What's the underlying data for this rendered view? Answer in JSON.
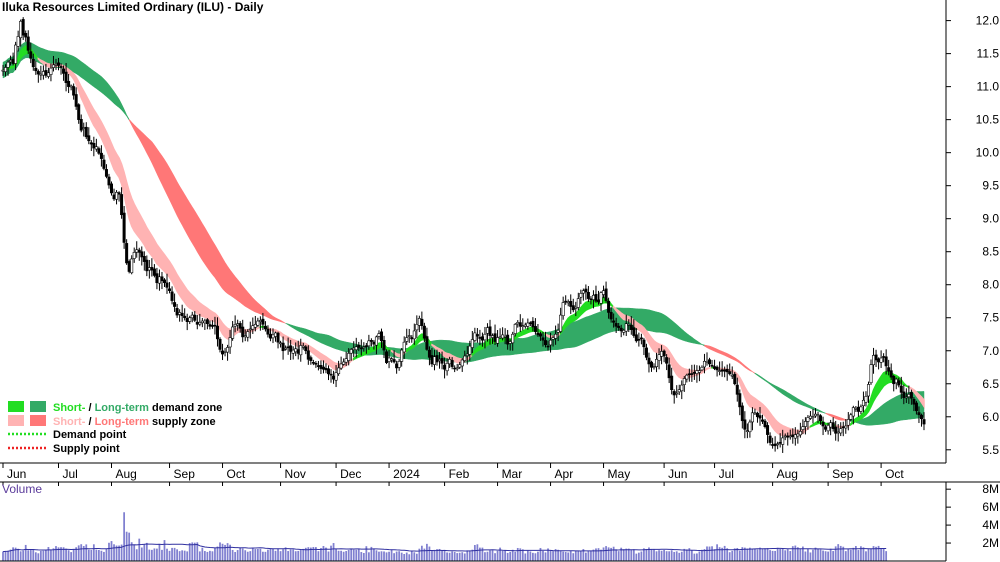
{
  "chart_data": {
    "type": "candlestick",
    "title": "Iluka Resources Limited Ordinary (ILU) - Daily",
    "colors": {
      "short_demand": "#22dd22",
      "long_demand": "#33aa66",
      "short_supply": "#ffb3b3",
      "long_supply": "#ff7777",
      "overlap": "#ff6622",
      "candle": "#000000",
      "volume": "#8080d0",
      "volume_avg": "#3030a0"
    },
    "price_axis": {
      "min": 5.3,
      "max": 12.1,
      "ticks": [
        12.0,
        11.5,
        11.0,
        10.5,
        10.0,
        9.5,
        9.0,
        8.5,
        8.0,
        7.5,
        7.0,
        6.5,
        6.0,
        5.5
      ]
    },
    "volume_axis": {
      "title": "Volume",
      "ticks": [
        "8M",
        "6M",
        "4M",
        "2M"
      ],
      "tick_values": [
        8,
        6,
        4,
        2
      ],
      "unit": "M"
    },
    "months": [
      "Jun",
      "Jul",
      "Aug",
      "Sep",
      "Oct",
      "Nov",
      "Dec",
      "2024",
      "Feb",
      "Mar",
      "Apr",
      "May",
      "Jun",
      "Jul",
      "Aug",
      "Sep",
      "Oct"
    ],
    "month_start_index": [
      0,
      22,
      43,
      66,
      87,
      110,
      132,
      153,
      175,
      196,
      217,
      238,
      262,
      282,
      305,
      327,
      348
    ],
    "closes": [
      11.25,
      11.29,
      11.37,
      11.4,
      11.35,
      11.63,
      11.76,
      11.99,
      11.78,
      11.75,
      11.55,
      11.43,
      11.3,
      11.24,
      11.19,
      11.19,
      11.23,
      11.17,
      11.21,
      11.28,
      11.33,
      11.34,
      11.32,
      11.29,
      11.2,
      11.06,
      11.0,
      11.01,
      10.87,
      10.7,
      10.5,
      10.34,
      10.38,
      10.24,
      10.18,
      10.13,
      10.07,
      10.09,
      9.99,
      9.91,
      9.76,
      9.64,
      9.51,
      9.39,
      9.3,
      9.4,
      9.37,
      9.06,
      8.64,
      8.33,
      8.2,
      8.39,
      8.49,
      8.53,
      8.49,
      8.42,
      8.35,
      8.21,
      8.26,
      8.22,
      8.14,
      8.03,
      8.12,
      8.06,
      8.03,
      7.96,
      7.91,
      7.76,
      7.67,
      7.54,
      7.58,
      7.53,
      7.5,
      7.44,
      7.5,
      7.54,
      7.46,
      7.4,
      7.43,
      7.45,
      7.45,
      7.41,
      7.37,
      7.38,
      7.38,
      7.18,
      7.02,
      6.95,
      6.99,
      7.05,
      7.2,
      7.36,
      7.4,
      7.41,
      7.34,
      7.21,
      7.23,
      7.29,
      7.33,
      7.38,
      7.4,
      7.45,
      7.46,
      7.4,
      7.33,
      7.25,
      7.19,
      7.24,
      7.27,
      7.13,
      7.12,
      7.0,
      7.04,
      7.06,
      6.99,
      7.01,
      7.03,
      6.96,
      7.08,
      7.07,
      7.0,
      6.87,
      6.85,
      6.82,
      6.8,
      6.76,
      6.73,
      6.72,
      6.71,
      6.65,
      6.64,
      6.57,
      6.67,
      6.74,
      6.8,
      6.83,
      6.88,
      6.96,
      7.02,
      7.04,
      7.06,
      7.05,
      7.03,
      7.06,
      7.07,
      7.15,
      7.14,
      7.1,
      7.21,
      7.26,
      7.15,
      7.01,
      6.82,
      6.89,
      6.88,
      6.83,
      6.74,
      6.84,
      7.01,
      7.13,
      7.2,
      7.23,
      7.18,
      7.3,
      7.4,
      7.49,
      7.38,
      7.19,
      7.02,
      6.9,
      6.8,
      6.91,
      6.83,
      6.87,
      6.81,
      6.72,
      6.81,
      6.87,
      6.76,
      6.73,
      6.74,
      6.79,
      6.86,
      6.92,
      6.95,
      7.07,
      7.17,
      7.27,
      7.22,
      7.19,
      7.16,
      7.25,
      7.35,
      7.23,
      7.23,
      7.14,
      7.2,
      7.21,
      7.24,
      7.22,
      7.1,
      7.14,
      7.25,
      7.4,
      7.43,
      7.37,
      7.38,
      7.39,
      7.42,
      7.42,
      7.36,
      7.29,
      7.24,
      7.22,
      7.16,
      7.09,
      7.07,
      7.16,
      7.2,
      7.25,
      7.31,
      7.54,
      7.73,
      7.75,
      7.74,
      7.67,
      7.62,
      7.66,
      7.79,
      7.87,
      7.91,
      7.89,
      7.79,
      7.78,
      7.84,
      7.75,
      7.74,
      7.88,
      7.91,
      7.76,
      7.58,
      7.48,
      7.43,
      7.37,
      7.35,
      7.3,
      7.31,
      7.41,
      7.4,
      7.32,
      7.23,
      7.15,
      7.17,
      7.18,
      7.06,
      6.9,
      6.8,
      6.75,
      6.76,
      6.87,
      6.94,
      6.99,
      6.92,
      6.81,
      6.59,
      6.41,
      6.33,
      6.36,
      6.41,
      6.48,
      6.58,
      6.63,
      6.65,
      6.65,
      6.67,
      6.7,
      6.7,
      6.75,
      6.84,
      6.84,
      6.8,
      6.77,
      6.73,
      6.71,
      6.7,
      6.69,
      6.69,
      6.68,
      6.65,
      6.63,
      6.5,
      6.34,
      6.15,
      5.94,
      5.81,
      5.79,
      5.92,
      6.06,
      6.06,
      6.0,
      5.98,
      5.93,
      5.85,
      5.73,
      5.61,
      5.57,
      5.56,
      5.59,
      5.61,
      5.68,
      5.71,
      5.69,
      5.71,
      5.7,
      5.73,
      5.74,
      5.78,
      5.85,
      5.93,
      5.99,
      6.01,
      6.0,
      6.04,
      6.03,
      5.94,
      5.86,
      5.81,
      5.87,
      5.91,
      5.82,
      5.75,
      5.77,
      5.82,
      5.84,
      5.86,
      5.96,
      6.03,
      6.14,
      6.13,
      6.08,
      6.15,
      6.25,
      6.31,
      6.49,
      6.79,
      6.93,
      6.86,
      6.83,
      6.89,
      6.9,
      6.77,
      6.69,
      6.6,
      6.5,
      6.57,
      6.48,
      6.37,
      6.29,
      6.3,
      6.34,
      6.28,
      6.19,
      6.09,
      6.03,
      5.97,
      5.89
    ],
    "volumes": [
      1.05,
      1.09,
      1.15,
      1.27,
      1.52,
      1.49,
      1.36,
      1.08,
      1.15,
      1.79,
      1.2,
      1.28,
      1.27,
      0.97,
      0.86,
      1.12,
      1.14,
      1.2,
      1.56,
      1.23,
      1.41,
      1.66,
      1.52,
      1.54,
      1.53,
      1.37,
      1.2,
      0.99,
      1.34,
      1.53,
      1.74,
      1.87,
      1.67,
      1.85,
      1.26,
      1.23,
      1.86,
      1.27,
      1.23,
      1.14,
      1.01,
      1.35,
      2.03,
      2.22,
      1.86,
      1.72,
      1.72,
      1.83,
      5.43,
      3.26,
      3.16,
      2.09,
      1.82,
      1.31,
      2.49,
      1.5,
      1.89,
      2.02,
      1.27,
      1.24,
      1.4,
      1.38,
      1.84,
      1.24,
      2.33,
      1.37,
      1.13,
      1.46,
      1.46,
      1.3,
      1.1,
      1.19,
      1.15,
      1.07,
      2.0,
      2.07,
      2.04,
      2.08,
      1.07,
      1.48,
      1.11,
      1.01,
      1.13,
      1.08,
      1.48,
      1.61,
      2.07,
      1.92,
      1.79,
      1.99,
      1.81,
      1.23,
      1.0,
      1.22,
      1.52,
      1.4,
      1.2,
      1.03,
      1.1,
      1.43,
      1.33,
      1.34,
      1.35,
      1.03,
      1.02,
      1.26,
      1.35,
      1.37,
      1.13,
      1.4,
      1.1,
      1.31,
      1.52,
      1.11,
      1.29,
      1.29,
      1.09,
      1.12,
      1.24,
      1.35,
      1.47,
      1.54,
      1.5,
      1.56,
      1.55,
      1.09,
      1.44,
      1.67,
      1.49,
      1.06,
      1.71,
      2.0,
      1.35,
      1.14,
      1.14,
      1.03,
      1.11,
      1.23,
      1.39,
      1.26,
      1.25,
      1.37,
      1.0,
      0.89,
      1.65,
      0.97,
      1.57,
      1.4,
      1.19,
      1.04,
      1.08,
      1.06,
      0.96,
      1.03,
      1.29,
      0.87,
      1.05,
      1.09,
      0.93,
      0.78,
      0.94,
      0.75,
      1.08,
      0.97,
      0.81,
      1.37,
      1.7,
      1.38,
      1.91,
      1.61,
      1.21,
      1.24,
      1.32,
      1.34,
      1.23,
      1.14,
      0.95,
      0.92,
      1.06,
      1.01,
      0.88,
      0.92,
      0.98,
      0.84,
      1.19,
      1.15,
      1.26,
      1.78,
      1.86,
      1.49,
      1.49,
      0.98,
      1.03,
      1.17,
      1.18,
      0.87,
      1.12,
      1.49,
      1.14,
      1.2,
      0.9,
      1.01,
      1.25,
      1.02,
      1.45,
      1.41,
      1.3,
      0.84,
      1.15,
      1.06,
      0.91,
      0.86,
      1.04,
      1.45,
      1.13,
      0.96,
      1.4,
      1.2,
      1.1,
      1.33,
      1.25,
      1.15,
      1.04,
      1.0,
      0.95,
      1.12,
      0.87,
      1.17,
      1.17,
      1.06,
      1.33,
      0.93,
      1.1,
      1.13,
      1.27,
      1.4,
      1.43,
      1.26,
      1.51,
      1.66,
      1.52,
      1.46,
      1.59,
      1.31,
      1.1,
      1.48,
      1.32,
      1.38,
      1.38,
      1.23,
      1.32,
      0.82,
      0.93,
      1.06,
      1.41,
      1.34,
      1.51,
      1.3,
      1.34,
      1.08,
      1.2,
      1.14,
      1.23,
      1.09,
      1.08,
      1.2,
      1.01,
      1.08,
      0.91,
      1.03,
      1.35,
      1.29,
      1.43,
      1.19,
      0.82,
      0.84,
      1.06,
      1.25,
      1.33,
      1.62,
      1.61,
      1.64,
      1.32,
      1.86,
      1.54,
      1.47,
      1.68,
      1.42,
      0.98,
      1.13,
      1.41,
      1.45,
      1.16,
      1.54,
      1.49,
      1.39,
      1.48,
      1.31,
      1.37,
      1.28,
      1.49,
      1.36,
      1.42,
      1.45,
      1.21,
      1.13,
      1.12,
      1.47,
      1.34,
      1.36,
      1.19,
      1.32,
      1.11,
      1.65,
      1.72,
      1.53,
      1.37,
      1.61,
      1.06,
      1.34,
      0.95,
      1.25,
      1.49,
      1.34,
      1.28,
      1.16,
      1.09,
      1.05,
      1.37,
      1.11,
      1.63,
      1.88,
      1.68,
      1.59,
      1.1,
      1.37,
      1.26,
      1.47,
      1.67,
      1.22,
      1.64,
      1.52,
      1.08,
      1.4,
      1.36,
      1.66,
      1.58,
      1.68,
      1.39,
      1.44,
      1.1
    ],
    "legend": [
      {
        "label": "Short- / Long-term demand zone",
        "short_color": "#22dd22",
        "long_color": "#33aa66",
        "text_parts": [
          "Short-",
          " / ",
          "Long-term",
          " demand zone"
        ]
      },
      {
        "label": "Short- / Long-term supply zone",
        "short_color": "#ffb3b3",
        "long_color": "#ff7777",
        "text_parts": [
          "Short-",
          " / ",
          "Long-term",
          " supply zone"
        ]
      },
      {
        "label": "Demand point",
        "color": "#22dd22"
      },
      {
        "label": "Supply point",
        "color": "#ee2222"
      }
    ],
    "legend_placement": "bottom-left"
  }
}
